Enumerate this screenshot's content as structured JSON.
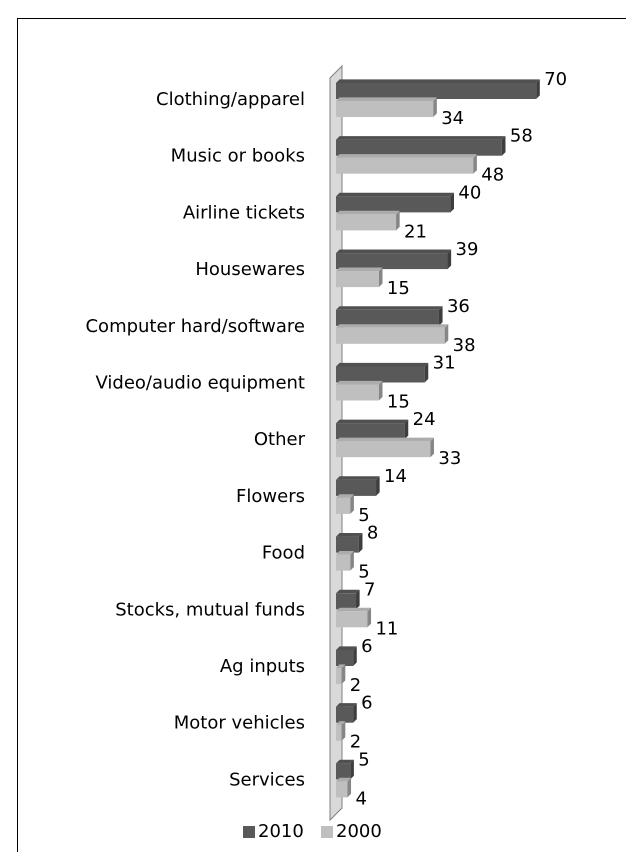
{
  "chart_data": {
    "type": "bar",
    "orientation": "horizontal",
    "categories": [
      "Clothing/apparel",
      "Music or books",
      "Airline tickets",
      "Housewares",
      "Computer hard/software",
      "Video/audio equipment",
      "Other",
      "Flowers",
      "Food",
      "Stocks, mutual funds",
      "Ag inputs",
      "Motor vehicles",
      "Services"
    ],
    "series": [
      {
        "name": "2010",
        "color": "#595959",
        "values": [
          70,
          58,
          40,
          39,
          36,
          31,
          24,
          14,
          8,
          7,
          6,
          6,
          5
        ]
      },
      {
        "name": "2000",
        "color": "#bfbfbf",
        "values": [
          34,
          48,
          21,
          15,
          38,
          15,
          33,
          5,
          5,
          11,
          2,
          2,
          4
        ]
      }
    ],
    "legend": "bottom"
  }
}
